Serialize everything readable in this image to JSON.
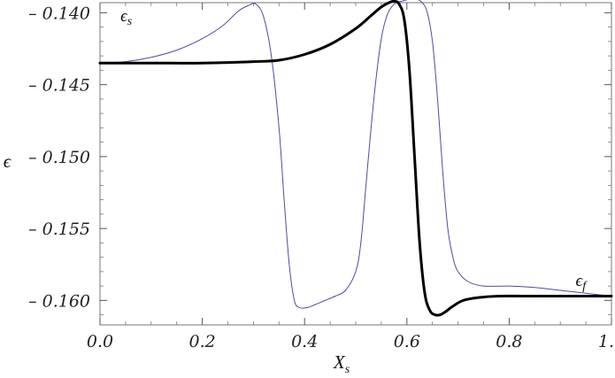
{
  "chart_data": {
    "type": "line",
    "title": "",
    "xlabel": "X",
    "xlabel_sub": "s",
    "ylabel": "ϵ",
    "xlim": [
      0.0,
      1.0
    ],
    "ylim": [
      -0.1617,
      -0.1393
    ],
    "grid": false,
    "xticks": [
      0.0,
      0.2,
      0.4,
      0.6,
      0.8,
      1.0
    ],
    "xtick_labels": [
      "0.0",
      "0.2",
      "0.4",
      "0.6",
      "0.8",
      "1.0"
    ],
    "yticks": [
      -0.16,
      -0.155,
      -0.15,
      -0.145,
      -0.14
    ],
    "ytick_labels": [
      "– 0.160",
      "– 0.155",
      "– 0.150",
      "– 0.145",
      "– 0.140"
    ],
    "annotations": [
      {
        "base": "ϵ",
        "sub": "s",
        "x": 0.04,
        "y": -0.1406
      },
      {
        "base": "ϵ",
        "sub": "f",
        "x": 0.93,
        "y": -0.159
      }
    ],
    "colors": {
      "thin": "#4a4f9c",
      "thick": "#000000"
    },
    "series": [
      {
        "style": "thin",
        "x": [
          0.0,
          0.05,
          0.1,
          0.15,
          0.2,
          0.24,
          0.27,
          0.29,
          0.305,
          0.32,
          0.335,
          0.35,
          0.36,
          0.37,
          0.38,
          0.39,
          0.405,
          0.42,
          0.44,
          0.46,
          0.48,
          0.5,
          0.51,
          0.52,
          0.53,
          0.54,
          0.55,
          0.56,
          0.57,
          0.58,
          0.59,
          0.6,
          0.615,
          0.63,
          0.64,
          0.65,
          0.66,
          0.67,
          0.68,
          0.69,
          0.7,
          0.72,
          0.75,
          0.8,
          0.85,
          0.9,
          0.95,
          1.0
        ],
        "y": [
          -0.1435,
          -0.1434,
          -0.1431,
          -0.1426,
          -0.1418,
          -0.1409,
          -0.1399,
          -0.1395,
          -0.1394,
          -0.1403,
          -0.143,
          -0.148,
          -0.153,
          -0.1575,
          -0.16,
          -0.1605,
          -0.1605,
          -0.1603,
          -0.16,
          -0.1597,
          -0.1593,
          -0.158,
          -0.156,
          -0.152,
          -0.148,
          -0.1445,
          -0.1418,
          -0.1403,
          -0.1396,
          -0.1393,
          -0.1392,
          -0.1391,
          -0.139,
          -0.1393,
          -0.14,
          -0.142,
          -0.146,
          -0.151,
          -0.155,
          -0.157,
          -0.158,
          -0.1587,
          -0.159,
          -0.159,
          -0.1591,
          -0.1593,
          -0.1595,
          -0.1597
        ]
      },
      {
        "style": "thick",
        "x": [
          0.0,
          0.1,
          0.2,
          0.3,
          0.35,
          0.4,
          0.45,
          0.5,
          0.53,
          0.55,
          0.565,
          0.575,
          0.585,
          0.595,
          0.605,
          0.615,
          0.625,
          0.635,
          0.645,
          0.655,
          0.665,
          0.675,
          0.69,
          0.71,
          0.74,
          0.78,
          0.85,
          0.9,
          1.0
        ],
        "y": [
          -0.1435,
          -0.1435,
          -0.1435,
          -0.1434,
          -0.1433,
          -0.1429,
          -0.1422,
          -0.1411,
          -0.1402,
          -0.1396,
          -0.1393,
          -0.1392,
          -0.1394,
          -0.1405,
          -0.144,
          -0.15,
          -0.156,
          -0.1595,
          -0.1607,
          -0.161,
          -0.161,
          -0.1608,
          -0.1604,
          -0.16,
          -0.1598,
          -0.1597,
          -0.1597,
          -0.1597,
          -0.1597
        ]
      }
    ]
  }
}
